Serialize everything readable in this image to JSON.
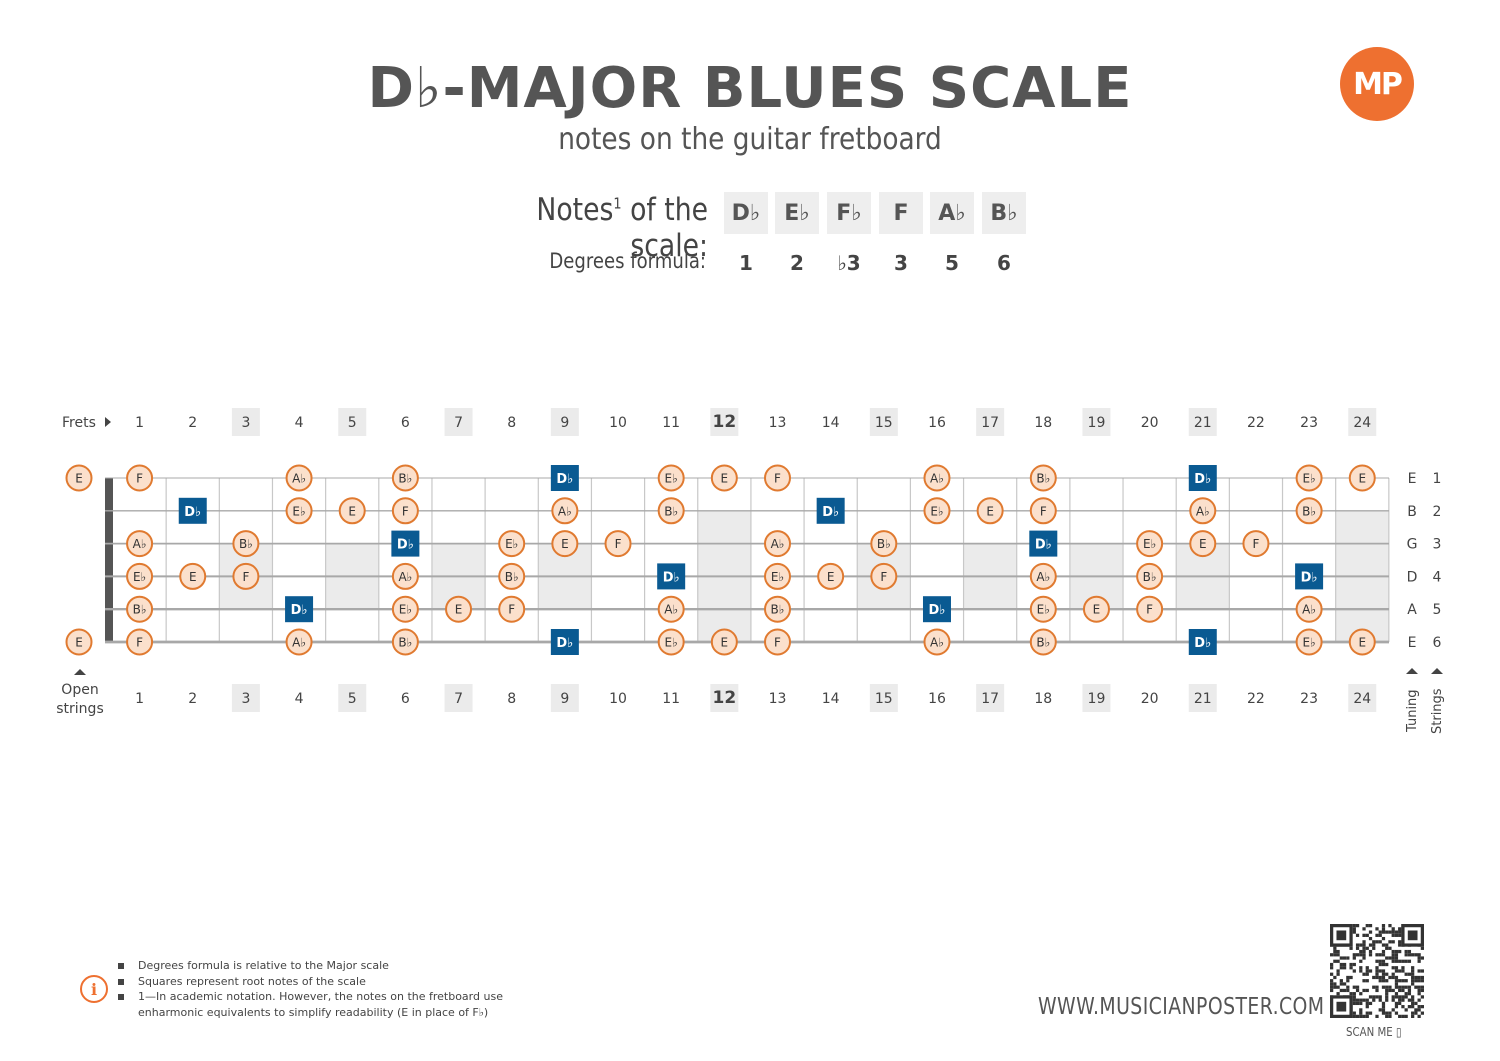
{
  "header": {
    "title": "D♭-MAJOR BLUES SCALE",
    "subtitle": "notes on the guitar fretboard",
    "logo": "MP"
  },
  "scale": {
    "notes_label": "Notes",
    "notes_label_sup": "1",
    "notes_label_suffix": " of the scale:",
    "notes": [
      "D♭",
      "E♭",
      "F♭",
      "F",
      "A♭",
      "B♭"
    ],
    "degrees_label": "Degrees formula:",
    "degrees": [
      "1",
      "2",
      "♭3",
      "3",
      "5",
      "6"
    ]
  },
  "fretboard": {
    "frets_label": "Frets",
    "open_strings_label": [
      "Open",
      "strings"
    ],
    "tuning_label": "Tuning",
    "strings_label": "Strings",
    "fret_numbers": [
      "1",
      "2",
      "3",
      "4",
      "5",
      "6",
      "7",
      "8",
      "9",
      "10",
      "11",
      "12",
      "13",
      "14",
      "15",
      "16",
      "17",
      "18",
      "19",
      "20",
      "21",
      "22",
      "23",
      "24"
    ],
    "highlighted_frets": [
      3,
      5,
      7,
      9,
      12,
      15,
      17,
      19,
      21,
      24
    ],
    "bold_frets": [
      12
    ],
    "tuning": [
      "E",
      "B",
      "G",
      "D",
      "A",
      "E"
    ],
    "string_numbers": [
      "1",
      "2",
      "3",
      "4",
      "5",
      "6"
    ],
    "open_notes": [
      "E",
      "",
      "",
      "",
      "",
      "E"
    ],
    "positions": [
      {
        "string": 1,
        "notes": [
          [
            1,
            "F"
          ],
          [
            4,
            "A♭"
          ],
          [
            6,
            "B♭"
          ],
          [
            9,
            "D♭",
            true
          ],
          [
            11,
            "E♭"
          ],
          [
            12,
            "E"
          ],
          [
            13,
            "F"
          ],
          [
            16,
            "A♭"
          ],
          [
            18,
            "B♭"
          ],
          [
            21,
            "D♭",
            true
          ],
          [
            23,
            "E♭"
          ],
          [
            24,
            "E"
          ]
        ]
      },
      {
        "string": 2,
        "notes": [
          [
            2,
            "D♭",
            true
          ],
          [
            4,
            "E♭"
          ],
          [
            5,
            "E"
          ],
          [
            6,
            "F"
          ],
          [
            9,
            "A♭"
          ],
          [
            11,
            "B♭"
          ],
          [
            14,
            "D♭",
            true
          ],
          [
            16,
            "E♭"
          ],
          [
            17,
            "E"
          ],
          [
            18,
            "F"
          ],
          [
            21,
            "A♭"
          ],
          [
            23,
            "B♭"
          ]
        ]
      },
      {
        "string": 3,
        "notes": [
          [
            1,
            "A♭"
          ],
          [
            3,
            "B♭"
          ],
          [
            6,
            "D♭",
            true
          ],
          [
            8,
            "E♭"
          ],
          [
            9,
            "E"
          ],
          [
            10,
            "F"
          ],
          [
            13,
            "A♭"
          ],
          [
            15,
            "B♭"
          ],
          [
            18,
            "D♭",
            true
          ],
          [
            20,
            "E♭"
          ],
          [
            21,
            "E"
          ],
          [
            22,
            "F"
          ]
        ]
      },
      {
        "string": 4,
        "notes": [
          [
            1,
            "E♭"
          ],
          [
            2,
            "E"
          ],
          [
            3,
            "F"
          ],
          [
            6,
            "A♭"
          ],
          [
            8,
            "B♭"
          ],
          [
            11,
            "D♭",
            true
          ],
          [
            13,
            "E♭"
          ],
          [
            14,
            "E"
          ],
          [
            15,
            "F"
          ],
          [
            18,
            "A♭"
          ],
          [
            20,
            "B♭"
          ],
          [
            23,
            "D♭",
            true
          ]
        ]
      },
      {
        "string": 5,
        "notes": [
          [
            1,
            "B♭"
          ],
          [
            4,
            "D♭",
            true
          ],
          [
            6,
            "E♭"
          ],
          [
            7,
            "E"
          ],
          [
            8,
            "F"
          ],
          [
            11,
            "A♭"
          ],
          [
            13,
            "B♭"
          ],
          [
            16,
            "D♭",
            true
          ],
          [
            18,
            "E♭"
          ],
          [
            19,
            "E"
          ],
          [
            20,
            "F"
          ],
          [
            23,
            "A♭"
          ]
        ]
      },
      {
        "string": 6,
        "notes": [
          [
            1,
            "F"
          ],
          [
            4,
            "A♭"
          ],
          [
            6,
            "B♭"
          ],
          [
            9,
            "D♭",
            true
          ],
          [
            11,
            "E♭"
          ],
          [
            12,
            "E"
          ],
          [
            13,
            "F"
          ],
          [
            16,
            "A♭"
          ],
          [
            18,
            "B♭"
          ],
          [
            21,
            "D♭",
            true
          ],
          [
            23,
            "E♭"
          ],
          [
            24,
            "E"
          ]
        ]
      }
    ],
    "colors": {
      "note_fill": "#fbe0cc",
      "note_stroke": "#e07a30",
      "root_fill": "#0a5a92",
      "string": "#a8a8a8",
      "fret": "#c8c8c8",
      "nut": "#555555",
      "inlay": "#ebebeb"
    }
  },
  "footer": {
    "notes": [
      "Degrees formula is relative to the Major scale",
      "Squares represent root notes of the scale",
      "1—In academic notation. However, the notes on the fretboard use enharmonic equivalents to simplify readability (E in place of F♭)"
    ],
    "website": "WWW.MUSICIANPOSTER.COM",
    "scan_label": "SCAN ME"
  }
}
